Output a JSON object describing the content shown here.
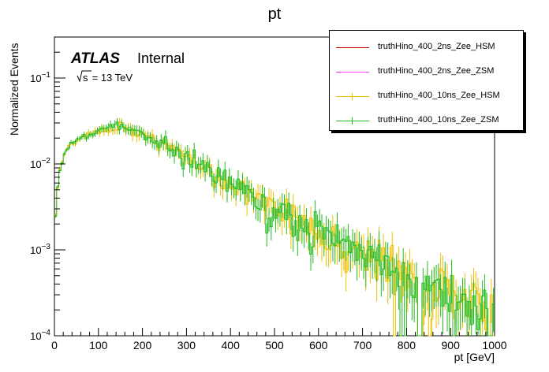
{
  "chart_data": {
    "type": "line",
    "title": "pt",
    "xlabel": "pt [GeV]",
    "ylabel": "Normalized Events",
    "xlim": [
      0,
      1000
    ],
    "ylim": [
      0.0001,
      0.3
    ],
    "yscale": "log",
    "grid": false,
    "legend_position": "top-right",
    "xticks": [
      0,
      100,
      200,
      300,
      400,
      500,
      600,
      700,
      800,
      900,
      1000
    ],
    "yticks": [
      {
        "value": 0.0001,
        "base": "10",
        "exp": "−4"
      },
      {
        "value": 0.001,
        "base": "10",
        "exp": "−3"
      },
      {
        "value": 0.01,
        "base": "10",
        "exp": "−2"
      },
      {
        "value": 0.1,
        "base": "10",
        "exp": "−1"
      }
    ],
    "annotations": {
      "experiment": "ATLAS",
      "status": "Internal",
      "sqrt_s_label": "s",
      "energy_label": " = 13 TeV"
    },
    "bins": {
      "start": 0,
      "end": 1000,
      "width": 5
    },
    "envelope": {
      "x": [
        0,
        5,
        10,
        20,
        30,
        50,
        80,
        110,
        140,
        160,
        180,
        200,
        230,
        260,
        300,
        350,
        400,
        450,
        500,
        550,
        600,
        650,
        700,
        750,
        800,
        850,
        900,
        950,
        1000
      ],
      "y": [
        0.0016,
        0.004,
        0.0075,
        0.012,
        0.016,
        0.019,
        0.022,
        0.025,
        0.0268,
        0.027,
        0.025,
        0.022,
        0.019,
        0.016,
        0.012,
        0.0085,
        0.006,
        0.0042,
        0.0031,
        0.0023,
        0.0017,
        0.0013,
        0.00095,
        0.0007,
        0.0005,
        0.00038,
        0.0003,
        0.00025,
        0.00021
      ]
    },
    "series": [
      {
        "name": "truthHino_400_2ns_Zee_HSM",
        "color": "#cc0000",
        "seed": 11,
        "drawn": false
      },
      {
        "name": "truthHino_400_2ns_Zee_ZSM",
        "color": "#ff33ff",
        "seed": 23,
        "drawn": false
      },
      {
        "name": "truthHino_400_10ns_Zee_HSM",
        "color": "#f0c000",
        "seed": 37,
        "drawn": true
      },
      {
        "name": "truthHino_400_10ns_Zee_ZSM",
        "color": "#22bb22",
        "seed": 53,
        "drawn": true
      }
    ]
  }
}
